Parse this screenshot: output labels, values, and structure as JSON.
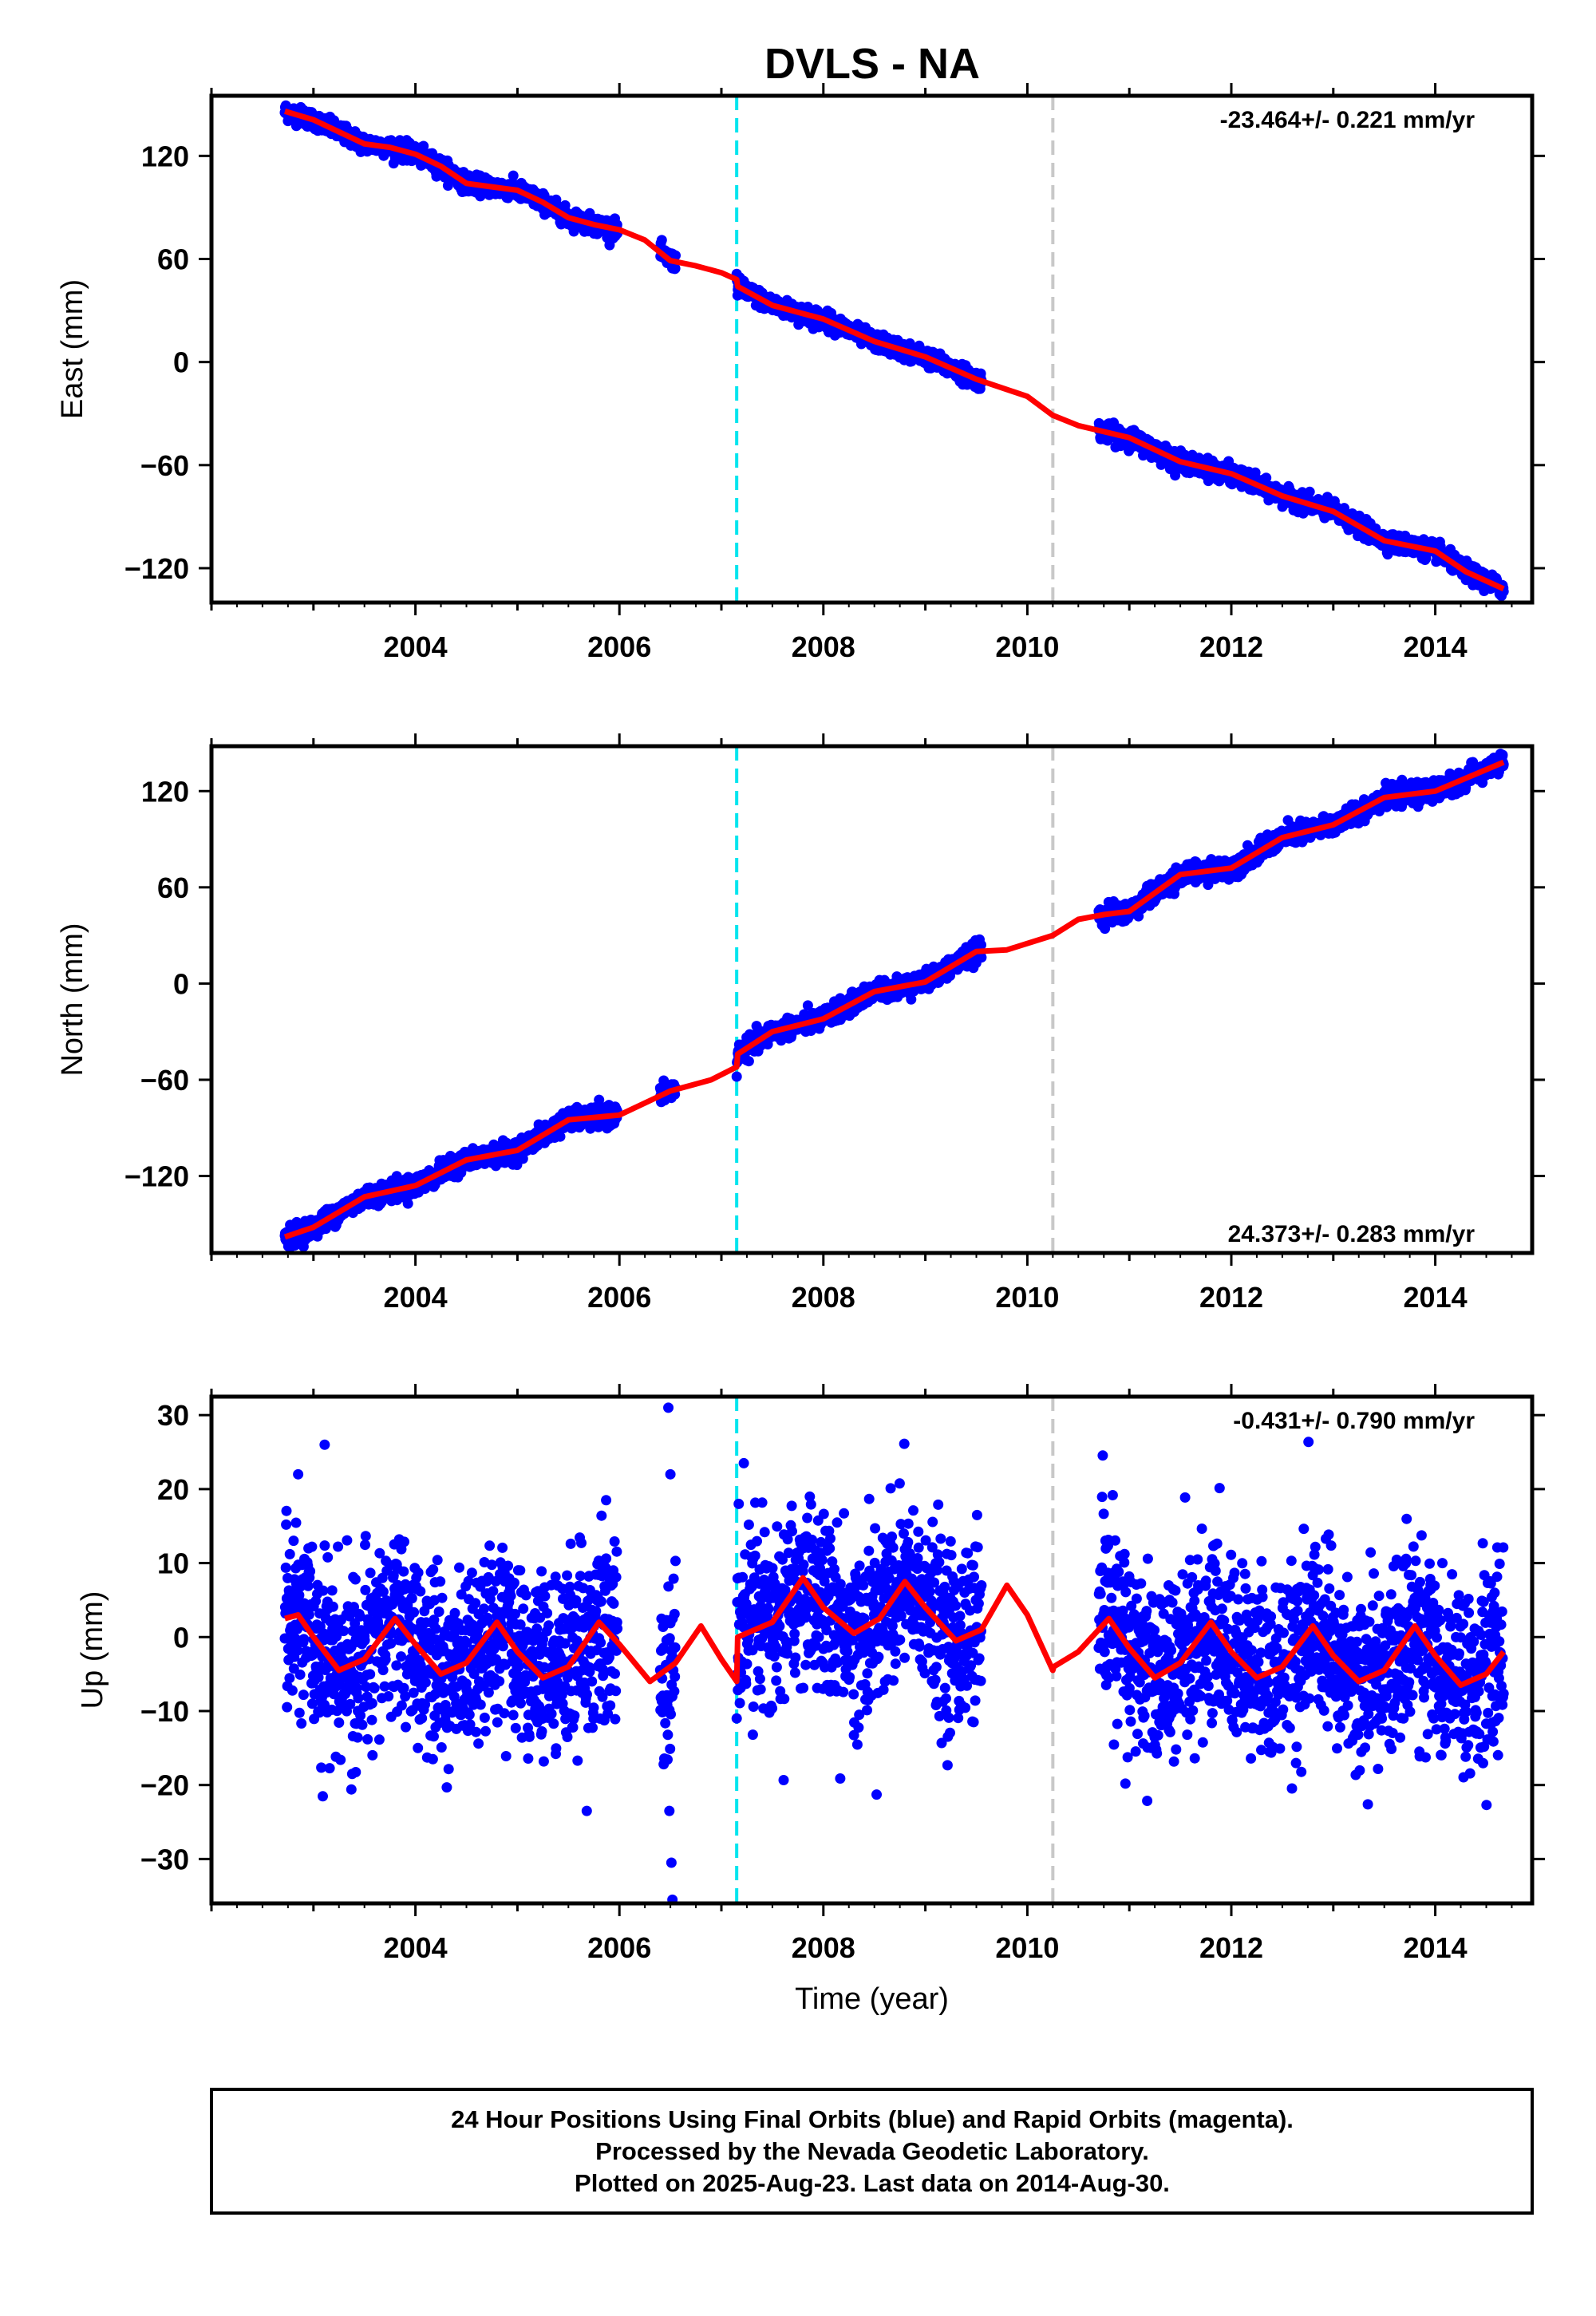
{
  "figure": {
    "title": "DVLS - NA",
    "footer": {
      "line1": "24 Hour Positions Using Final Orbits (blue) and Rapid Orbits (magenta).",
      "line2": "Processed by the Nevada Geodetic Laboratory.",
      "line3": "Plotted on 2025-Aug-23. Last data on 2014-Aug-30."
    }
  },
  "colors": {
    "data_points": "#0000ff",
    "model_fit": "#ff0000",
    "equipment_change": "#00e5ee",
    "other_event": "#c8c8c8",
    "frame": "#000000"
  },
  "chart_data": [
    {
      "type": "scatter",
      "ylabel": "East (mm)",
      "xlim": [
        2002.0,
        2014.95
      ],
      "ylim": [
        -140,
        155
      ],
      "yticks": [
        -120,
        -60,
        0,
        60,
        120
      ],
      "xticks": [
        2004,
        2006,
        2008,
        2010,
        2012,
        2014
      ],
      "rate_label": "-23.464+/- 0.221 mm/yr",
      "rate_position": "top-right",
      "vertical_lines": [
        {
          "x": 2007.15,
          "color": "cyan"
        },
        {
          "x": 2010.25,
          "color": "lightgray"
        }
      ],
      "data_segments": [
        {
          "start": 2002.72,
          "end": 2005.98
        },
        {
          "start": 2006.4,
          "end": 2006.55
        },
        {
          "start": 2007.15,
          "end": 2009.55
        },
        {
          "start": 2010.7,
          "end": 2014.67
        }
      ],
      "scatter_noise_mm": 2.5,
      "series": [
        {
          "name": "model",
          "x": [
            2002.72,
            2003.0,
            2003.25,
            2003.5,
            2003.75,
            2004.0,
            2004.25,
            2004.5,
            2004.75,
            2005.0,
            2005.25,
            2005.5,
            2005.75,
            2006.0,
            2006.25,
            2006.5,
            2006.75,
            2007.0,
            2007.15,
            2007.16,
            2007.5,
            2008.0,
            2008.5,
            2009.0,
            2009.5,
            2010.0,
            2010.25,
            2010.5,
            2011.0,
            2011.5,
            2012.0,
            2012.5,
            2013.0,
            2013.5,
            2014.0,
            2014.3,
            2014.67
          ],
          "y": [
            146,
            141,
            134,
            127,
            125,
            121,
            114,
            104,
            102,
            100,
            93,
            84,
            80,
            77,
            71,
            59,
            56,
            52,
            48,
            44,
            33,
            25,
            12,
            3,
            -10,
            -20,
            -31,
            -37,
            -44,
            -58,
            -65,
            -78,
            -87,
            -104,
            -110,
            -122,
            -132
          ]
        }
      ]
    },
    {
      "type": "scatter",
      "ylabel": "North (mm)",
      "xlim": [
        2002.0,
        2014.95
      ],
      "ylim": [
        -168,
        148
      ],
      "yticks": [
        -120,
        -60,
        0,
        60,
        120
      ],
      "xticks": [
        2004,
        2006,
        2008,
        2010,
        2012,
        2014
      ],
      "rate_label": "24.373+/- 0.283 mm/yr",
      "rate_position": "bottom-right",
      "vertical_lines": [
        {
          "x": 2007.15,
          "color": "cyan"
        },
        {
          "x": 2010.25,
          "color": "lightgray"
        }
      ],
      "data_segments": [
        {
          "start": 2002.72,
          "end": 2005.98
        },
        {
          "start": 2006.4,
          "end": 2006.55
        },
        {
          "start": 2007.15,
          "end": 2009.55
        },
        {
          "start": 2010.7,
          "end": 2014.67
        }
      ],
      "scatter_noise_mm": 3,
      "series": [
        {
          "name": "model",
          "x": [
            2002.72,
            2003.0,
            2003.5,
            2004.0,
            2004.5,
            2005.0,
            2005.5,
            2006.0,
            2006.5,
            2006.9,
            2007.15,
            2007.16,
            2007.5,
            2008.0,
            2008.5,
            2009.0,
            2009.5,
            2009.8,
            2010.25,
            2010.5,
            2010.75,
            2011.0,
            2011.5,
            2012.0,
            2012.5,
            2013.0,
            2013.5,
            2014.0,
            2014.67
          ],
          "y": [
            -158,
            -152,
            -133,
            -126,
            -110,
            -104,
            -85,
            -82,
            -67,
            -60,
            -52,
            -44,
            -30,
            -22,
            -5,
            1,
            20,
            21,
            30,
            40,
            43,
            45,
            68,
            72,
            91,
            99,
            116,
            120,
            138
          ]
        }
      ]
    },
    {
      "type": "scatter",
      "ylabel": "Up (mm)",
      "xlabel": "Time (year)",
      "xlim": [
        2002.0,
        2014.95
      ],
      "ylim": [
        -36,
        32.5
      ],
      "yticks": [
        -30,
        -20,
        -10,
        0,
        10,
        20,
        30
      ],
      "xticks": [
        2004,
        2006,
        2008,
        2010,
        2012,
        2014
      ],
      "rate_label": "-0.431+/- 0.790 mm/yr",
      "rate_position": "top-right",
      "vertical_lines": [
        {
          "x": 2007.15,
          "color": "cyan"
        },
        {
          "x": 2010.25,
          "color": "lightgray"
        }
      ],
      "data_segments": [
        {
          "start": 2002.72,
          "end": 2005.98
        },
        {
          "start": 2006.4,
          "end": 2006.55
        },
        {
          "start": 2007.15,
          "end": 2009.55
        },
        {
          "start": 2010.7,
          "end": 2014.67
        }
      ],
      "scatter_noise_mm": 6,
      "outliers": [
        {
          "x": 2006.48,
          "y": 31
        },
        {
          "x": 2006.5,
          "y": 22
        },
        {
          "x": 2006.49,
          "y": -23.5
        },
        {
          "x": 2006.51,
          "y": -30.5
        },
        {
          "x": 2006.52,
          "y": -35.5
        },
        {
          "x": 2003.11,
          "y": 26
        },
        {
          "x": 2003.38,
          "y": -18.5
        },
        {
          "x": 2007.22,
          "y": 23.5
        },
        {
          "x": 2007.17,
          "y": 18
        },
        {
          "x": 2002.85,
          "y": 22
        },
        {
          "x": 2005.68,
          "y": -23.5
        },
        {
          "x": 2005.87,
          "y": 18.5
        }
      ],
      "series": [
        {
          "name": "model",
          "x": [
            2002.72,
            2002.85,
            2003.0,
            2003.25,
            2003.5,
            2003.8,
            2004.0,
            2004.25,
            2004.5,
            2004.8,
            2005.0,
            2005.25,
            2005.5,
            2005.8,
            2006.0,
            2006.3,
            2006.55,
            2006.8,
            2007.0,
            2007.15,
            2007.16,
            2007.5,
            2007.8,
            2008.0,
            2008.3,
            2008.55,
            2008.8,
            2009.0,
            2009.3,
            2009.55,
            2009.8,
            2010.0,
            2010.25,
            2010.26,
            2010.5,
            2010.8,
            2011.0,
            2011.25,
            2011.5,
            2011.8,
            2012.0,
            2012.25,
            2012.5,
            2012.8,
            2013.0,
            2013.25,
            2013.5,
            2013.8,
            2014.0,
            2014.25,
            2014.5,
            2014.67
          ],
          "y": [
            2.5,
            3,
            0,
            -4.5,
            -3,
            2.5,
            -1,
            -5,
            -3.5,
            2,
            -2,
            -5.5,
            -4,
            2,
            -1,
            -6,
            -3.5,
            1.5,
            -3,
            -6,
            0,
            2,
            8,
            4,
            0.5,
            2.5,
            7.5,
            4,
            -0.5,
            1,
            7,
            3,
            -4.5,
            -4,
            -2,
            2.5,
            -1.5,
            -5.5,
            -3.5,
            2,
            -2,
            -5.5,
            -4,
            1.5,
            -2.5,
            -6,
            -4.5,
            1.5,
            -2.5,
            -6.5,
            -5,
            -2
          ]
        }
      ]
    }
  ]
}
